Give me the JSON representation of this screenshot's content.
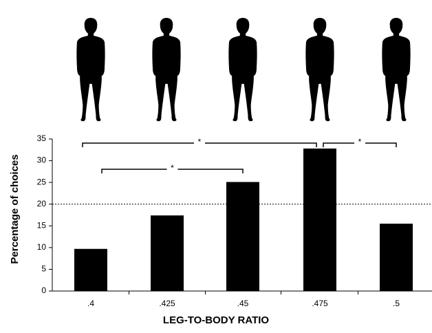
{
  "chart_data": {
    "type": "bar",
    "x_label": "LEG-TO-BODY RATIO",
    "y_label": "Percentage of choices",
    "categories": [
      ".4",
      ".425",
      ".45",
      ".475",
      ".5"
    ],
    "values": [
      9.7,
      17.4,
      25.1,
      32.8,
      15.5
    ],
    "color": "#000000",
    "ylim": [
      0,
      35
    ],
    "yticks": [
      0,
      5,
      10,
      15,
      20,
      25,
      30,
      35
    ],
    "reference_line": 20,
    "significance": [
      {
        "from": ".4",
        "to": ".475",
        "label": "*"
      },
      {
        "from": ".4",
        "to": ".45",
        "label": "*"
      },
      {
        "from": ".475",
        "to": ".5",
        "label": "*"
      }
    ]
  }
}
